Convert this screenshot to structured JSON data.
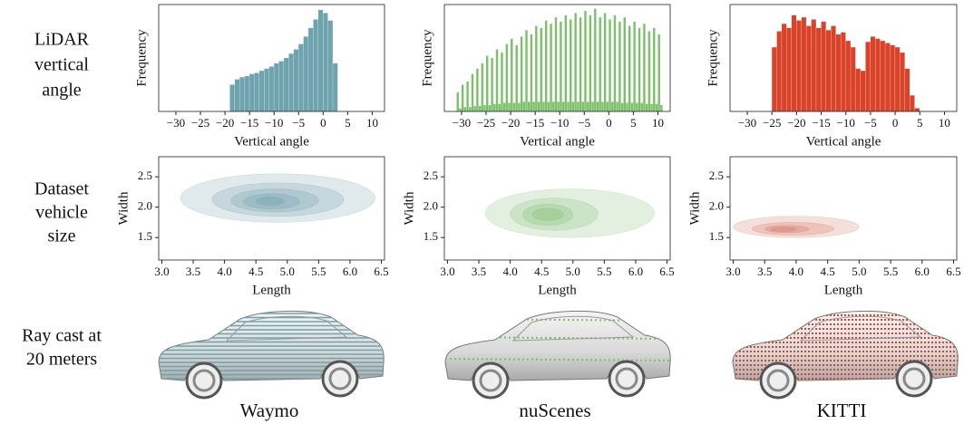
{
  "row_labels": [
    [
      "LiDAR",
      "vertical",
      "angle"
    ],
    [
      "Dataset",
      "vehicle",
      "size"
    ],
    [
      "Ray cast at",
      "20 meters"
    ]
  ],
  "column_labels": [
    "Waymo",
    "nuScenes",
    "KITTI"
  ],
  "chart_data": [
    {
      "type": "histogram",
      "ylabel": "Frequency",
      "xlabel": "Vertical angle",
      "color": "#6fa3ad",
      "bins": [
        -19,
        -18,
        -17,
        -16,
        -15,
        -14,
        -13,
        -12,
        -11,
        -10,
        -9,
        -8,
        -7,
        -6,
        -5,
        -4,
        -3,
        -2,
        -1,
        0,
        1,
        2,
        3
      ],
      "counts": [
        25,
        30,
        32,
        33,
        35,
        36,
        38,
        40,
        42,
        45,
        47,
        50,
        54,
        58,
        63,
        70,
        78,
        86,
        95,
        92,
        85,
        45
      ],
      "xlim": [
        -33.5,
        12.5
      ],
      "ylim": [
        0,
        100
      ],
      "xticks": [
        {
          "value": -30,
          "label": "−30"
        },
        {
          "value": -25,
          "label": "−25"
        },
        {
          "value": -20,
          "label": "−20"
        },
        {
          "value": -15,
          "label": "−15"
        },
        {
          "value": -10,
          "label": "−10"
        },
        {
          "value": -5,
          "label": "−5"
        },
        0,
        5,
        10
      ]
    },
    {
      "type": "histogram",
      "ylabel": "Frequency",
      "xlabel": "Vertical angle",
      "color": "#7cc06a",
      "bins": [
        -31,
        -30.5,
        -30,
        -29.5,
        -29,
        -28.5,
        -28,
        -27.5,
        -27,
        -26.5,
        -26,
        -25.5,
        -25,
        -24.5,
        -24,
        -23.5,
        -23,
        -22.5,
        -22,
        -21.5,
        -21,
        -20.5,
        -20,
        -19.5,
        -19,
        -18.5,
        -18,
        -17.5,
        -17,
        -16.5,
        -16,
        -15.5,
        -15,
        -14.5,
        -14,
        -13.5,
        -13,
        -12.5,
        -12,
        -11.5,
        -11,
        -10.5,
        -10,
        -9.5,
        -9,
        -8.5,
        -8,
        -7.5,
        -7,
        -6.5,
        -6,
        -5.5,
        -5,
        -4.5,
        -4,
        -3.5,
        -3,
        -2.5,
        -2,
        -1.5,
        -1,
        -0.5,
        0,
        0.5,
        1,
        1.5,
        2,
        2.5,
        3,
        3.5,
        4,
        4.5,
        5,
        5.5,
        6,
        6.5,
        7,
        7.5,
        8,
        8.5,
        9,
        9.5,
        10,
        10.5,
        11
      ],
      "counts": [
        18,
        3,
        25,
        4,
        28,
        4,
        35,
        5,
        40,
        5,
        45,
        6,
        52,
        6,
        50,
        7,
        58,
        7,
        55,
        8,
        63,
        8,
        68,
        8,
        62,
        8,
        70,
        9,
        76,
        9,
        72,
        9,
        80,
        9,
        78,
        9,
        85,
        9,
        82,
        9,
        88,
        9,
        84,
        9,
        90,
        9,
        86,
        9,
        92,
        9,
        88,
        9,
        94,
        9,
        90,
        9,
        96,
        9,
        88,
        9,
        92,
        9,
        86,
        9,
        90,
        9,
        84,
        8,
        88,
        8,
        80,
        8,
        84,
        8,
        78,
        8,
        82,
        7,
        75,
        7,
        78,
        7,
        72,
        6
      ],
      "xlim": [
        -33.5,
        12.5
      ],
      "ylim": [
        0,
        100
      ],
      "xticks": [
        {
          "value": -30,
          "label": "−30"
        },
        {
          "value": -25,
          "label": "−25"
        },
        {
          "value": -20,
          "label": "−20"
        },
        {
          "value": -15,
          "label": "−15"
        },
        {
          "value": -10,
          "label": "−10"
        },
        {
          "value": -5,
          "label": "−5"
        },
        0,
        5,
        10
      ]
    },
    {
      "type": "histogram",
      "ylabel": "Frequency",
      "xlabel": "Vertical angle",
      "color": "#d9432a",
      "bins": [
        -25,
        -24,
        -23,
        -22,
        -21,
        -20,
        -19,
        -18,
        -17,
        -16,
        -15,
        -14,
        -13,
        -12,
        -11,
        -10,
        -9,
        -8,
        -7,
        -6,
        -5,
        -4,
        -3,
        -2,
        -1,
        0,
        1,
        2,
        3,
        4,
        5
      ],
      "counts": [
        60,
        75,
        82,
        78,
        90,
        85,
        88,
        80,
        86,
        78,
        84,
        76,
        80,
        72,
        74,
        66,
        60,
        40,
        38,
        65,
        70,
        68,
        66,
        64,
        62,
        60,
        55,
        40,
        15,
        3
      ],
      "xlim": [
        -33.5,
        12.5
      ],
      "ylim": [
        0,
        100
      ],
      "xticks": [
        {
          "value": -30,
          "label": "−30"
        },
        {
          "value": -25,
          "label": "−25"
        },
        {
          "value": -20,
          "label": "−20"
        },
        {
          "value": -15,
          "label": "−15"
        },
        {
          "value": -10,
          "label": "−10"
        },
        {
          "value": -5,
          "label": "−5"
        },
        0,
        5,
        10
      ]
    },
    {
      "type": "kde",
      "xlabel": "Length",
      "ylabel": "Width",
      "color": "#3f7f8c",
      "contours": [
        {
          "x": [
            3.3,
            6.4
          ],
          "y": [
            1.75,
            2.55
          ]
        },
        {
          "x": [
            3.8,
            5.9
          ],
          "y": [
            1.85,
            2.4
          ]
        },
        {
          "x": [
            4.1,
            5.5
          ],
          "y": [
            1.92,
            2.3
          ]
        },
        {
          "x": [
            4.3,
            5.2
          ],
          "y": [
            1.97,
            2.22
          ]
        },
        {
          "x": [
            4.5,
            4.95
          ],
          "y": [
            2.03,
            2.17
          ]
        }
      ],
      "xlim": [
        2.95,
        6.55
      ],
      "ylim": [
        1.13,
        2.83
      ],
      "xticks": [
        {
          "value": 3,
          "label": "3.0"
        },
        3.5,
        {
          "value": 4,
          "label": "4.0"
        },
        4.5,
        {
          "value": 5,
          "label": "5.0"
        },
        5.5,
        {
          "value": 6,
          "label": "6.0"
        },
        6.5
      ],
      "yticks": [
        1.5,
        {
          "value": 2,
          "label": "2.0"
        },
        2.5
      ]
    },
    {
      "type": "kde",
      "xlabel": "Length",
      "ylabel": "Width",
      "color": "#4f9f3f",
      "contours": [
        {
          "x": [
            3.6,
            6.3
          ],
          "y": [
            1.5,
            2.3
          ]
        },
        {
          "x": [
            4.0,
            5.4
          ],
          "y": [
            1.62,
            2.15
          ]
        },
        {
          "x": [
            4.2,
            5.0
          ],
          "y": [
            1.7,
            2.05
          ]
        },
        {
          "x": [
            4.35,
            4.85
          ],
          "y": [
            1.78,
            1.98
          ]
        }
      ],
      "xlim": [
        2.95,
        6.55
      ],
      "ylim": [
        1.13,
        2.83
      ],
      "xticks": [
        {
          "value": 3,
          "label": "3.0"
        },
        3.5,
        {
          "value": 4,
          "label": "4.0"
        },
        4.5,
        {
          "value": 5,
          "label": "5.0"
        },
        5.5,
        {
          "value": 6,
          "label": "6.0"
        },
        6.5
      ],
      "yticks": [
        1.5,
        {
          "value": 2,
          "label": "2.0"
        },
        2.5
      ]
    },
    {
      "type": "kde",
      "xlabel": "Length",
      "ylabel": "Width",
      "color": "#c2361f",
      "contours": [
        {
          "x": [
            3.0,
            5.0
          ],
          "y": [
            1.5,
            1.85
          ]
        },
        {
          "x": [
            3.3,
            4.6
          ],
          "y": [
            1.54,
            1.75
          ]
        },
        {
          "x": [
            3.5,
            4.2
          ],
          "y": [
            1.58,
            1.7
          ]
        },
        {
          "x": [
            3.6,
            4.0
          ],
          "y": [
            1.6,
            1.67
          ]
        }
      ],
      "xlim": [
        2.95,
        6.55
      ],
      "ylim": [
        1.13,
        2.83
      ],
      "xticks": [
        {
          "value": 3,
          "label": "3.0"
        },
        3.5,
        {
          "value": 4,
          "label": "4.0"
        },
        4.5,
        {
          "value": 5,
          "label": "5.0"
        },
        5.5,
        {
          "value": 6,
          "label": "6.0"
        },
        6.5
      ],
      "yticks": [
        1.5,
        {
          "value": 2,
          "label": "2.0"
        },
        2.5
      ]
    }
  ]
}
